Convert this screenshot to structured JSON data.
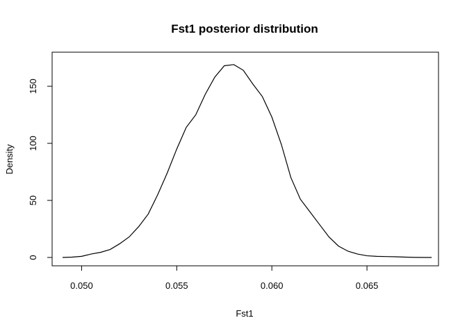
{
  "chart_data": {
    "type": "line",
    "title": "Fst1 posterior distribution",
    "xlabel": "Fst1",
    "ylabel": "Density",
    "xlim": [
      0.04845,
      0.06876
    ],
    "ylim": [
      0,
      170
    ],
    "xticks": [
      0.05,
      0.055,
      0.06,
      0.065
    ],
    "xtick_labels": [
      "0.050",
      "0.055",
      "0.060",
      "0.065"
    ],
    "yticks": [
      0,
      50,
      100,
      150
    ],
    "ytick_labels": [
      "0",
      "50",
      "100",
      "150"
    ],
    "grid": false,
    "legend": "none",
    "line_color": "#000000",
    "series": [
      {
        "x": [
          0.049,
          0.0495,
          0.05,
          0.0505,
          0.051,
          0.0515,
          0.052,
          0.0525,
          0.053,
          0.0535,
          0.054,
          0.0545,
          0.055,
          0.0555,
          0.056,
          0.0565,
          0.057,
          0.0575,
          0.058,
          0.0585,
          0.059,
          0.0595,
          0.06,
          0.0605,
          0.061,
          0.0615,
          0.062,
          0.0625,
          0.063,
          0.0635,
          0.064,
          0.0645,
          0.065,
          0.0655,
          0.066,
          0.0665,
          0.067,
          0.0675,
          0.068,
          0.0684
        ],
        "y": [
          0,
          0.3,
          1,
          3,
          4.5,
          7,
          12,
          18,
          27,
          38,
          55,
          74,
          95,
          114,
          125,
          143,
          158,
          168,
          169,
          164,
          152,
          141,
          123,
          99,
          70,
          51,
          40,
          29,
          18,
          10,
          5.5,
          3,
          1.5,
          1,
          0.8,
          0.6,
          0.3,
          0.1,
          0,
          0
        ]
      }
    ]
  }
}
